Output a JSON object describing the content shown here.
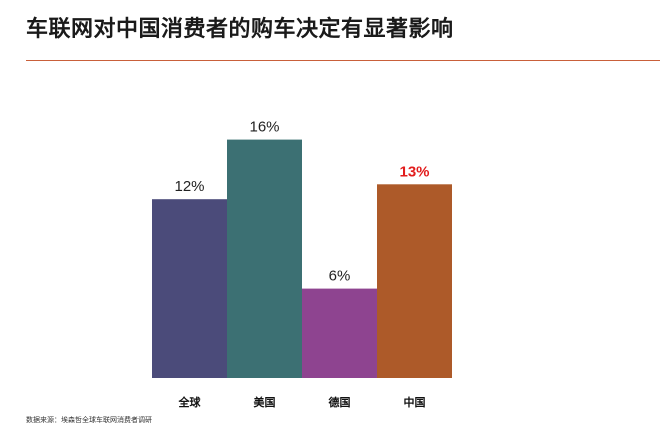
{
  "title": "车联网对中国消费者的购车决定有显著影响",
  "source": "数据来源：埃森哲全球车联网消费者调研",
  "chart_data": {
    "type": "bar",
    "categories": [
      "全球",
      "美国",
      "德国",
      "中国"
    ],
    "values": [
      12,
      16,
      6,
      13
    ],
    "value_labels": [
      "12%",
      "16%",
      "6%",
      "13%"
    ],
    "colors": [
      "#4b4b7a",
      "#3c7073",
      "#8e4490",
      "#ad5a29"
    ],
    "label_colors": [
      "#222222",
      "#222222",
      "#222222",
      "#e21c1c"
    ],
    "highlight_index": 3,
    "unit": "%",
    "ylim": [
      0,
      16
    ],
    "grid": false,
    "legend": "none",
    "xlabel": "",
    "ylabel": ""
  }
}
